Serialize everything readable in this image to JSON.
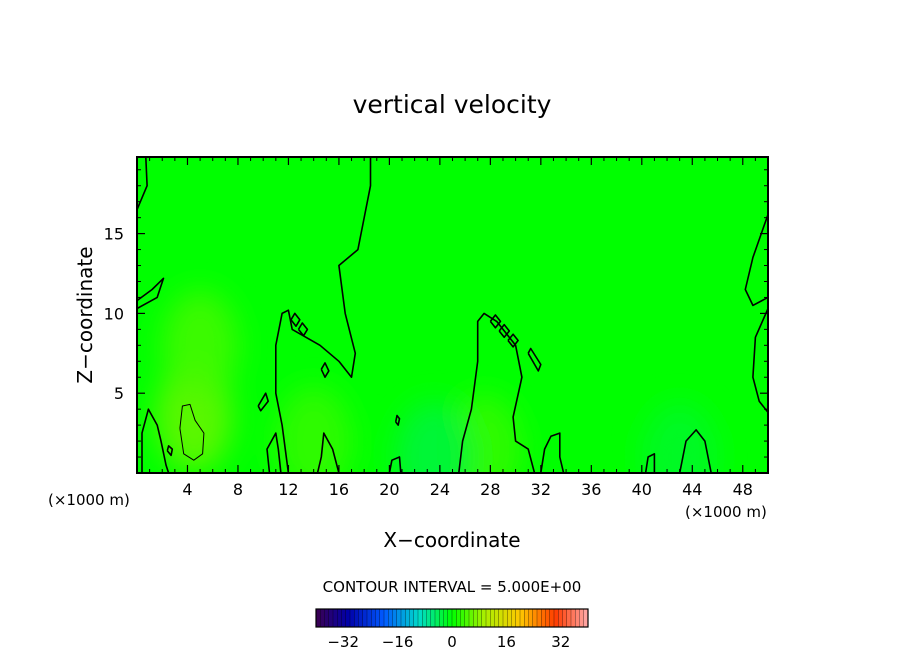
{
  "chart_data": {
    "type": "heatmap",
    "title": "vertical velocity",
    "xlabel": "X−coordinate",
    "ylabel": "Z−coordinate",
    "x_units_left": "(×1000 m)",
    "x_units_right": "(×1000 m)",
    "xlim": [
      0,
      50
    ],
    "ylim": [
      0,
      19.8
    ],
    "x_ticks": [
      4,
      8,
      12,
      16,
      20,
      24,
      28,
      32,
      36,
      40,
      44,
      48
    ],
    "x_tick_labels": [
      "4",
      "8",
      "12",
      "16",
      "20",
      "24",
      "28",
      "32",
      "36",
      "40",
      "44",
      "48"
    ],
    "y_ticks": [
      5,
      10,
      15
    ],
    "y_tick_labels": [
      "5",
      "10",
      "15"
    ],
    "contour_interval_text": "CONTOUR INTERVAL = 5.000E+00",
    "colorbar": {
      "range": [
        -40,
        40
      ],
      "ticks": [
        -32,
        -16,
        0,
        16,
        32
      ],
      "tick_labels": [
        "−32",
        "−16",
        "0",
        "16",
        "32"
      ]
    },
    "field_peaks": [
      {
        "x": 4.5,
        "z": 3.5,
        "value": 6
      },
      {
        "x": 5.0,
        "z": 8.0,
        "value": 4
      },
      {
        "x": 14.0,
        "z": 2.0,
        "value": 3
      },
      {
        "x": 27.5,
        "z": 1.5,
        "value": 3
      },
      {
        "x": 23.5,
        "z": 1.0,
        "value": -3
      },
      {
        "x": 43.0,
        "z": 1.0,
        "value": -2
      }
    ],
    "contours": [
      {
        "level": 0,
        "points": [
          [
            0.4,
            0
          ],
          [
            0.4,
            2.5
          ],
          [
            0.9,
            4.0
          ],
          [
            1.6,
            3.0
          ],
          [
            1.9,
            2.0
          ],
          [
            2.3,
            0.5
          ],
          [
            2.5,
            0
          ]
        ]
      },
      {
        "level": 0,
        "points": [
          [
            0,
            16.5
          ],
          [
            0.8,
            18
          ],
          [
            0.7,
            19.8
          ]
        ]
      },
      {
        "level": 0,
        "points": [
          [
            0,
            10.8
          ],
          [
            1.2,
            11.5
          ],
          [
            2.1,
            12.2
          ],
          [
            1.6,
            11.0
          ],
          [
            0,
            10.3
          ]
        ]
      },
      {
        "level": 0,
        "points": [
          [
            10.5,
            0
          ],
          [
            10.3,
            1.5
          ],
          [
            11.0,
            2.5
          ],
          [
            11.2,
            1.5
          ],
          [
            11.4,
            0
          ]
        ]
      },
      {
        "level": 0,
        "points": [
          [
            12.0,
            0
          ],
          [
            11.5,
            3.0
          ],
          [
            11.0,
            5.0
          ],
          [
            11.0,
            8.0
          ],
          [
            11.5,
            10.0
          ],
          [
            12.0,
            10.2
          ],
          [
            12.3,
            9.0
          ],
          [
            14.5,
            8.0
          ],
          [
            16.0,
            7.0
          ],
          [
            17.0,
            6.0
          ],
          [
            17.3,
            7.5
          ],
          [
            16.5,
            10.0
          ],
          [
            16.0,
            13.0
          ],
          [
            17.5,
            14.0
          ],
          [
            18.0,
            16.0
          ],
          [
            18.5,
            18.0
          ],
          [
            18.5,
            19.8
          ]
        ]
      },
      {
        "level": 0,
        "points": [
          [
            16.0,
            0
          ],
          [
            15.5,
            1.5
          ],
          [
            14.8,
            2.5
          ],
          [
            14.6,
            1.0
          ],
          [
            14.3,
            0
          ]
        ]
      },
      {
        "level": 0,
        "points": [
          [
            20.0,
            0
          ],
          [
            20.2,
            0.8
          ],
          [
            20.8,
            1.0
          ],
          [
            20.9,
            0
          ]
        ]
      },
      {
        "level": 0,
        "points": [
          [
            25.5,
            0
          ],
          [
            25.8,
            2.0
          ],
          [
            26.5,
            4.0
          ],
          [
            27.0,
            7.0
          ],
          [
            27.0,
            9.5
          ],
          [
            27.5,
            10.0
          ],
          [
            28.5,
            9.5
          ],
          [
            30.0,
            8.0
          ],
          [
            30.5,
            6.0
          ],
          [
            29.8,
            3.5
          ],
          [
            30.0,
            2.0
          ],
          [
            31.0,
            1.5
          ],
          [
            31.5,
            0
          ]
        ]
      },
      {
        "level": 0,
        "points": [
          [
            32.0,
            0
          ],
          [
            32.3,
            1.5
          ],
          [
            32.8,
            2.3
          ],
          [
            33.5,
            2.5
          ],
          [
            33.5,
            1.0
          ],
          [
            33.8,
            0
          ]
        ]
      },
      {
        "level": 0,
        "points": [
          [
            40.3,
            0
          ],
          [
            40.5,
            1.0
          ],
          [
            41.0,
            1.2
          ],
          [
            41.0,
            0
          ]
        ]
      },
      {
        "level": 0,
        "points": [
          [
            43.0,
            0
          ],
          [
            43.5,
            2.0
          ],
          [
            44.3,
            2.7
          ],
          [
            45.0,
            2.0
          ],
          [
            45.5,
            0
          ]
        ]
      },
      {
        "level": 0,
        "points": [
          [
            50,
            16.2
          ],
          [
            48.8,
            13.5
          ],
          [
            48.2,
            11.5
          ],
          [
            48.8,
            10.5
          ],
          [
            50,
            11.0
          ]
        ]
      },
      {
        "level": 0,
        "points": [
          [
            50,
            10.3
          ],
          [
            49.0,
            8.5
          ],
          [
            48.8,
            6.0
          ],
          [
            49.3,
            4.5
          ],
          [
            50,
            3.8
          ]
        ]
      },
      {
        "level": 5,
        "points": [
          [
            3.4,
            2.8
          ],
          [
            3.6,
            4.2
          ],
          [
            4.2,
            4.3
          ],
          [
            4.6,
            3.3
          ],
          [
            5.3,
            2.5
          ],
          [
            5.2,
            1.2
          ],
          [
            4.5,
            0.8
          ],
          [
            3.7,
            1.2
          ],
          [
            3.4,
            2.8
          ]
        ]
      },
      {
        "level": 0,
        "points": [
          [
            12.2,
            9.6
          ],
          [
            12.6,
            9.2
          ],
          [
            12.9,
            9.6
          ],
          [
            12.5,
            10.0
          ],
          [
            12.2,
            9.6
          ]
        ]
      },
      {
        "level": 0,
        "points": [
          [
            12.8,
            9.0
          ],
          [
            13.2,
            8.6
          ],
          [
            13.5,
            9.0
          ],
          [
            13.1,
            9.4
          ],
          [
            12.8,
            9.0
          ]
        ]
      },
      {
        "level": 0,
        "points": [
          [
            28.0,
            9.5
          ],
          [
            28.4,
            9.1
          ],
          [
            28.8,
            9.5
          ],
          [
            28.4,
            9.9
          ],
          [
            28.0,
            9.5
          ]
        ]
      },
      {
        "level": 0,
        "points": [
          [
            28.7,
            8.9
          ],
          [
            29.1,
            8.5
          ],
          [
            29.5,
            8.9
          ],
          [
            29.1,
            9.3
          ],
          [
            28.7,
            8.9
          ]
        ]
      },
      {
        "level": 0,
        "points": [
          [
            29.4,
            8.3
          ],
          [
            29.8,
            7.9
          ],
          [
            30.2,
            8.3
          ],
          [
            29.8,
            8.7
          ],
          [
            29.4,
            8.3
          ]
        ]
      },
      {
        "level": 0,
        "points": [
          [
            31.0,
            7.5
          ],
          [
            31.8,
            6.4
          ],
          [
            32.0,
            6.8
          ],
          [
            31.2,
            7.8
          ],
          [
            31.0,
            7.5
          ]
        ]
      },
      {
        "level": 0,
        "points": [
          [
            14.6,
            6.5
          ],
          [
            14.9,
            6.0
          ],
          [
            15.2,
            6.4
          ],
          [
            14.9,
            6.9
          ],
          [
            14.6,
            6.5
          ]
        ]
      },
      {
        "level": 0,
        "points": [
          [
            9.6,
            4.2
          ],
          [
            10.2,
            5.0
          ],
          [
            10.4,
            4.5
          ],
          [
            9.8,
            3.9
          ],
          [
            9.6,
            4.2
          ]
        ]
      },
      {
        "level": 0,
        "points": [
          [
            20.5,
            3.2
          ],
          [
            20.7,
            3.0
          ],
          [
            20.8,
            3.4
          ],
          [
            20.6,
            3.6
          ],
          [
            20.5,
            3.2
          ]
        ]
      },
      {
        "level": 0,
        "points": [
          [
            2.4,
            1.4
          ],
          [
            2.7,
            1.1
          ],
          [
            2.8,
            1.5
          ],
          [
            2.5,
            1.7
          ],
          [
            2.4,
            1.4
          ]
        ]
      }
    ]
  }
}
